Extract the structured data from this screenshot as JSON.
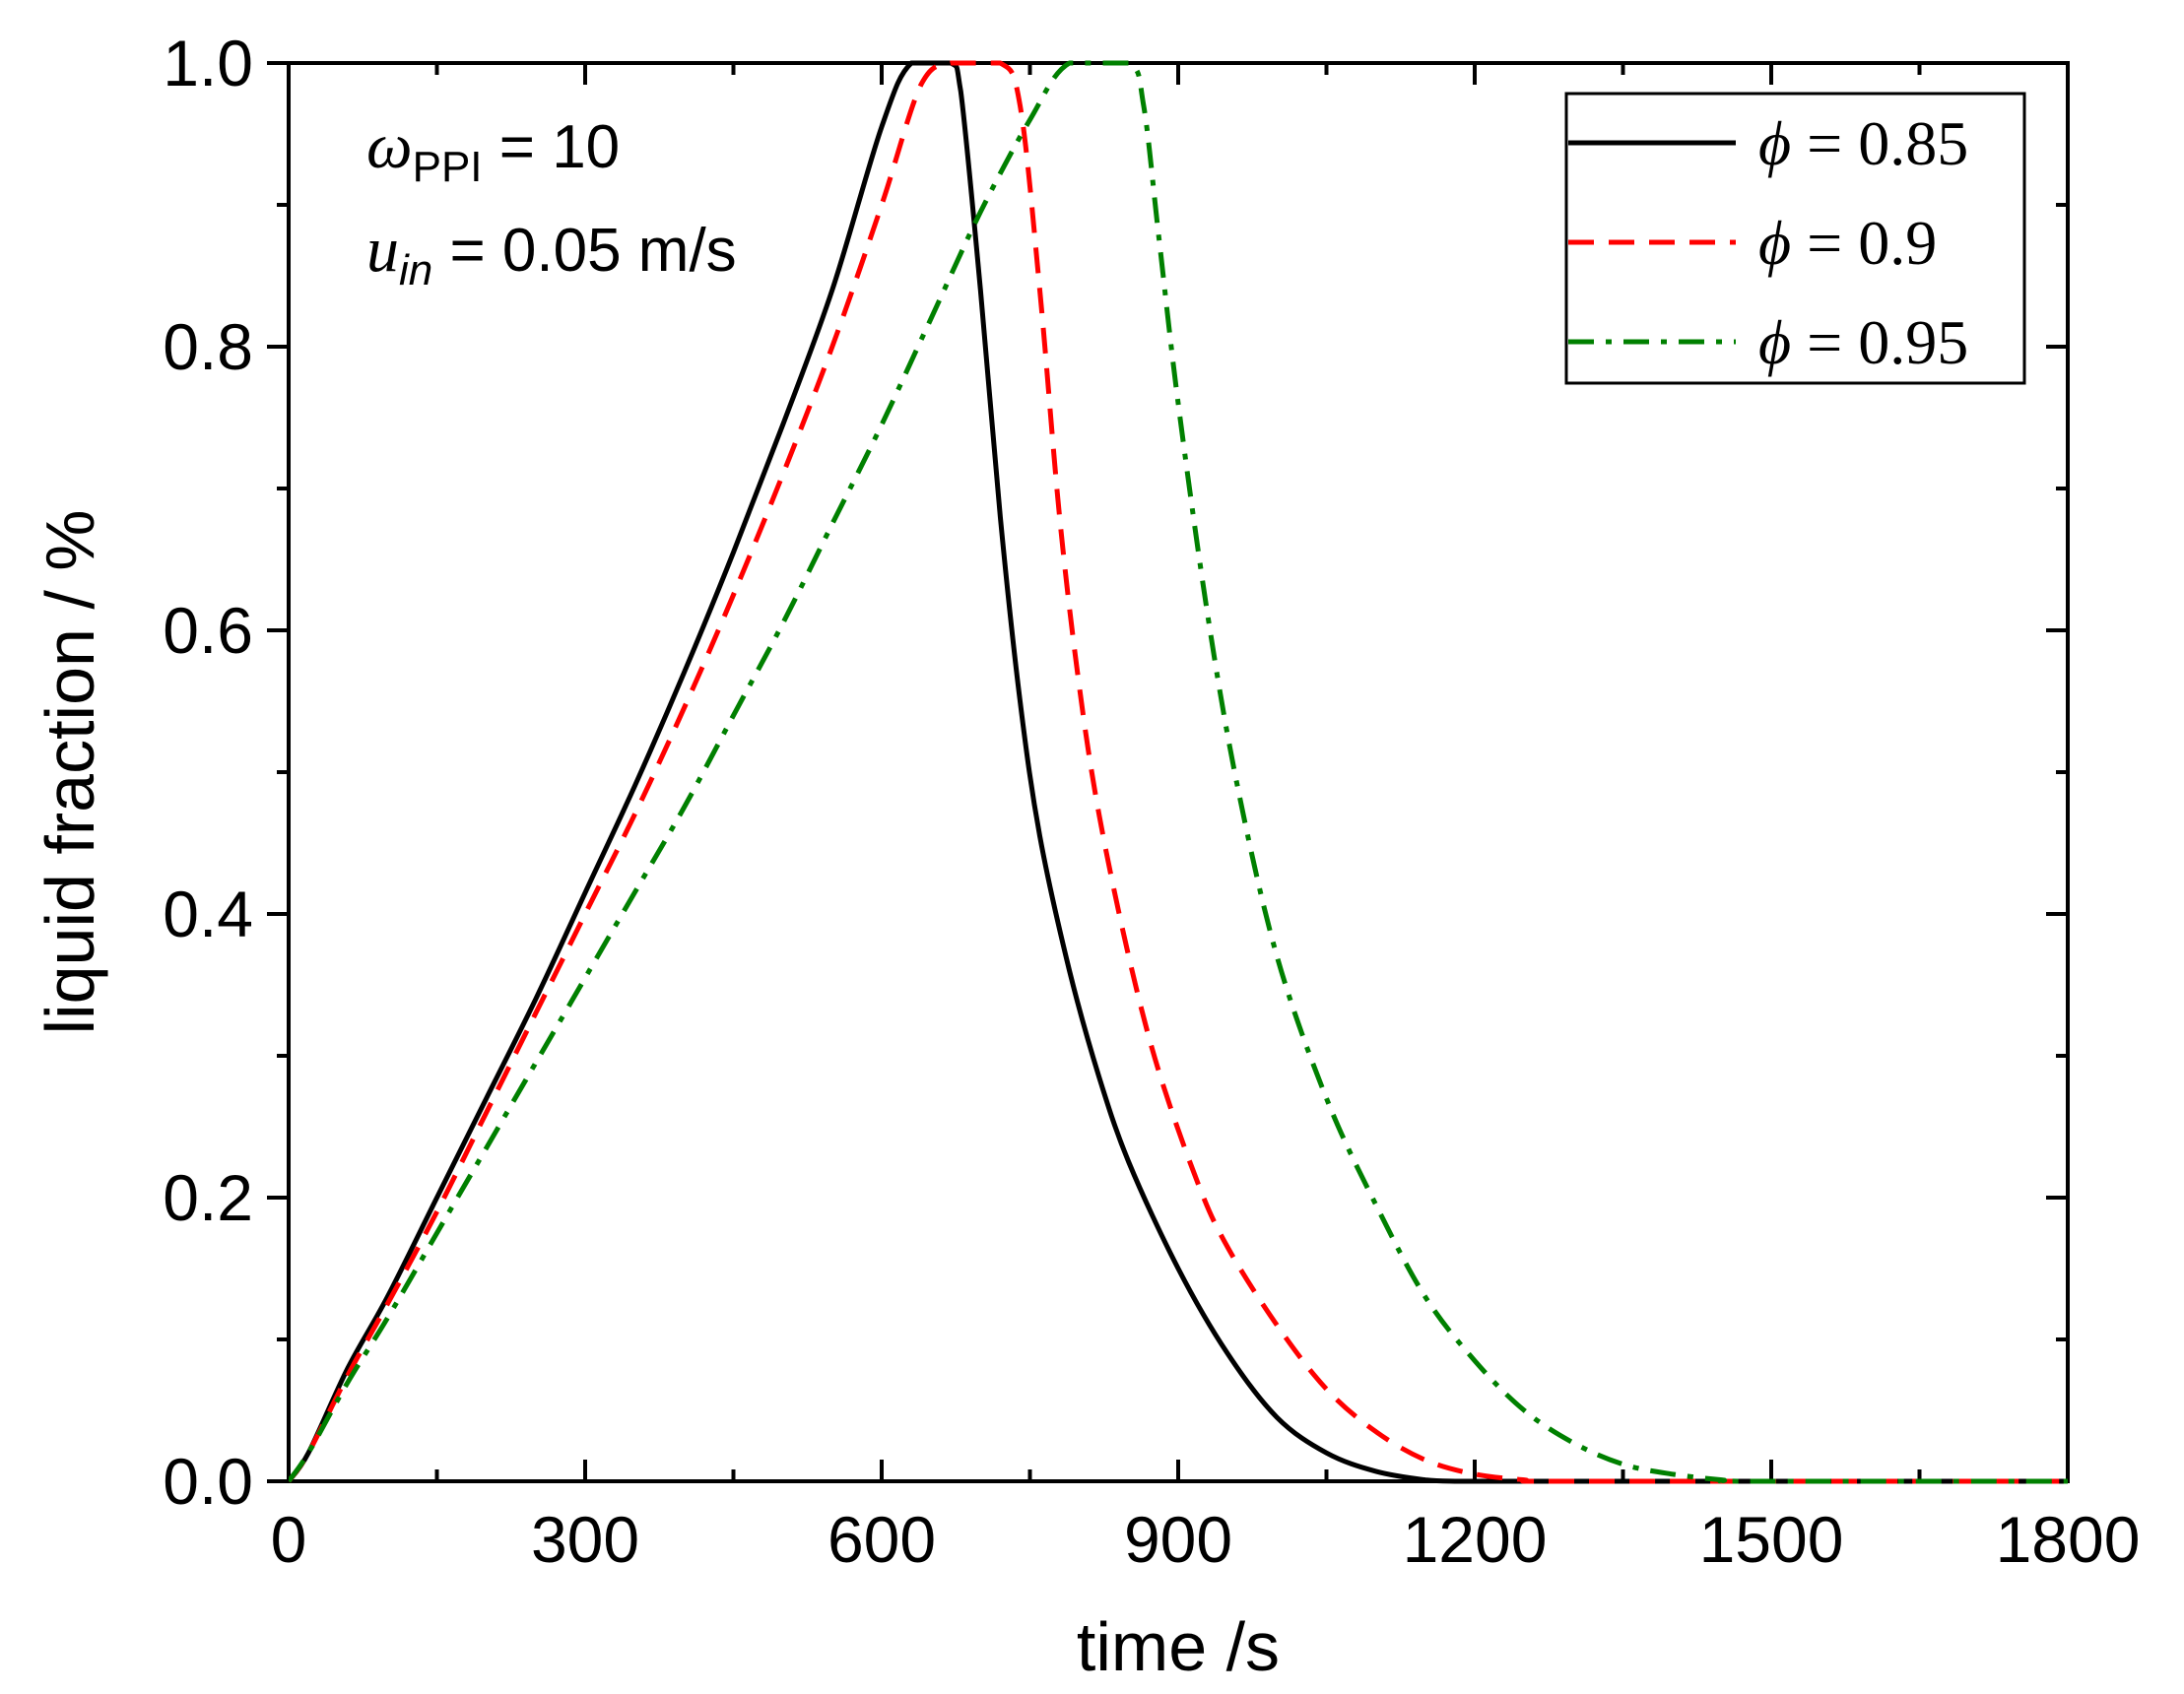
{
  "chart_data": {
    "type": "line",
    "xlabel": "time /s",
    "ylabel": "liquid fraction / %",
    "xlim": [
      0,
      1800
    ],
    "ylim": [
      0.0,
      1.0
    ],
    "xticks": [
      "0",
      "300",
      "600",
      "900",
      "1200",
      "1500",
      "1800"
    ],
    "yticks": [
      "0.0",
      "0.2",
      "0.4",
      "0.6",
      "0.8",
      "1.0"
    ],
    "legend_position": "top-right",
    "annotations": {
      "line1": {
        "symbol": "ω",
        "sub": "PPI",
        "rest": " = 10"
      },
      "line2": {
        "symbol": "u",
        "sub": "in",
        "rest": " = 0.05 m/s"
      }
    },
    "series": [
      {
        "name": "ϕ = 0.85",
        "legend_symbol": "ϕ",
        "legend_value": " = 0.85",
        "color": "#000000",
        "style": "solid",
        "x": [
          0,
          20,
          60,
          100,
          150,
          200,
          250,
          300,
          350,
          400,
          450,
          500,
          550,
          600,
          630,
          670,
          680,
          700,
          720,
          740,
          760,
          790,
          820,
          850,
          900,
          950,
          1000,
          1050,
          1100,
          1150,
          1180,
          1200,
          1300,
          1500,
          1800
        ],
        "y": [
          0.0,
          0.02,
          0.08,
          0.13,
          0.2,
          0.27,
          0.34,
          0.415,
          0.49,
          0.57,
          0.655,
          0.745,
          0.84,
          0.955,
          1.0,
          1.0,
          0.98,
          0.84,
          0.68,
          0.55,
          0.455,
          0.36,
          0.285,
          0.225,
          0.15,
          0.09,
          0.045,
          0.02,
          0.007,
          0.001,
          0.0,
          0.0,
          0.0,
          0.0,
          0.0
        ]
      },
      {
        "name": "ϕ = 0.9",
        "legend_symbol": "ϕ",
        "legend_value": " = 0.9",
        "color": "#ff0000",
        "style": "dashed",
        "x": [
          0,
          20,
          60,
          100,
          150,
          200,
          250,
          300,
          350,
          400,
          450,
          500,
          550,
          600,
          640,
          670,
          720,
          740,
          760,
          780,
          800,
          820,
          850,
          880,
          920,
          950,
          1000,
          1050,
          1100,
          1150,
          1200,
          1250,
          1270,
          1500,
          1800
        ],
        "y": [
          0.0,
          0.02,
          0.075,
          0.125,
          0.19,
          0.26,
          0.33,
          0.4,
          0.47,
          0.545,
          0.625,
          0.71,
          0.8,
          0.9,
          0.985,
          1.0,
          1.0,
          0.97,
          0.84,
          0.68,
          0.56,
          0.47,
          0.37,
          0.29,
          0.21,
          0.165,
          0.11,
          0.065,
          0.035,
          0.015,
          0.005,
          0.001,
          0.0,
          0.0,
          0.0
        ]
      },
      {
        "name": "ϕ = 0.95",
        "legend_symbol": "ϕ",
        "legend_value": " = 0.95",
        "color": "#008000",
        "style": "dashdot",
        "x": [
          0,
          20,
          60,
          100,
          150,
          200,
          250,
          300,
          350,
          400,
          450,
          500,
          550,
          600,
          650,
          700,
          750,
          790,
          850,
          865,
          880,
          900,
          930,
          960,
          1000,
          1050,
          1100,
          1150,
          1200,
          1250,
          1300,
          1350,
          1400,
          1450,
          1480,
          1800
        ],
        "y": [
          0.0,
          0.02,
          0.07,
          0.115,
          0.175,
          0.235,
          0.295,
          0.355,
          0.415,
          0.475,
          0.54,
          0.605,
          0.675,
          0.745,
          0.82,
          0.895,
          0.96,
          1.0,
          1.0,
          0.97,
          0.88,
          0.76,
          0.61,
          0.49,
          0.37,
          0.27,
          0.195,
          0.13,
          0.085,
          0.05,
          0.027,
          0.012,
          0.005,
          0.001,
          0.0,
          0.0
        ]
      }
    ]
  }
}
